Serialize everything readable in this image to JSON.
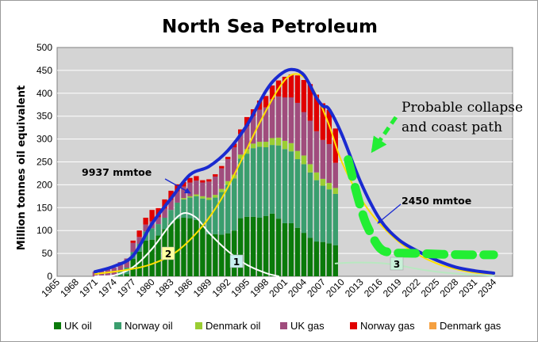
{
  "chart_data": {
    "type": "bar",
    "stacked": true,
    "title": "North Sea Petroleum",
    "ylabel": "Million tonnes oil equivalent",
    "xlabel": "",
    "ylim": [
      0,
      500
    ],
    "yticks": [
      "0",
      "50",
      "100",
      "150",
      "200",
      "250",
      "300",
      "350",
      "400",
      "450",
      "500"
    ],
    "xticks": [
      "1965",
      "1968",
      "1971",
      "1974",
      "1977",
      "1980",
      "1983",
      "1986",
      "1989",
      "1992",
      "1995",
      "1998",
      "2001",
      "2004",
      "2007",
      "2010",
      "2013",
      "2016",
      "2019",
      "2022",
      "2025",
      "2028",
      "2031",
      "2034"
    ],
    "grid": true,
    "legend_position": "bottom",
    "categories": [
      1971,
      1972,
      1973,
      1974,
      1975,
      1976,
      1977,
      1978,
      1979,
      1980,
      1981,
      1982,
      1983,
      1984,
      1985,
      1986,
      1987,
      1988,
      1989,
      1990,
      1991,
      1992,
      1993,
      1994,
      1995,
      1996,
      1997,
      1998,
      1999,
      2000,
      2001,
      2002,
      2003,
      2004,
      2005,
      2006,
      2007,
      2008,
      2009
    ],
    "series": [
      {
        "name": "UK oil",
        "color": "#0a7a0a",
        "values": [
          0,
          0,
          0,
          1,
          2,
          5,
          38,
          54,
          78,
          80,
          89,
          103,
          115,
          126,
          128,
          127,
          123,
          115,
          92,
          92,
          91,
          94,
          100,
          127,
          130,
          130,
          128,
          132,
          137,
          126,
          116,
          116,
          106,
          95,
          84,
          76,
          75,
          72,
          68
        ]
      },
      {
        "name": "Norway oil",
        "color": "#3a9e6e",
        "values": [
          0,
          0,
          2,
          2,
          9,
          14,
          15,
          17,
          20,
          25,
          25,
          25,
          30,
          35,
          40,
          45,
          52,
          55,
          75,
          80,
          93,
          106,
          114,
          130,
          138,
          150,
          155,
          150,
          150,
          160,
          162,
          157,
          150,
          150,
          143,
          134,
          123,
          118,
          112
        ]
      },
      {
        "name": "Denmark oil",
        "color": "#9acd32",
        "values": [
          0,
          0,
          0,
          0,
          0,
          0,
          0,
          0,
          0,
          0,
          0,
          0,
          0,
          0,
          3,
          3,
          4,
          5,
          5,
          6,
          7,
          8,
          8,
          9,
          10,
          10,
          11,
          12,
          15,
          17,
          18,
          18,
          18,
          19,
          18,
          17,
          15,
          14,
          13
        ]
      },
      {
        "name": "UK gas",
        "color": "#a04c7d",
        "values": [
          10,
          14,
          16,
          16,
          20,
          20,
          20,
          15,
          15,
          15,
          15,
          20,
          22,
          25,
          25,
          30,
          30,
          30,
          35,
          40,
          45,
          48,
          60,
          45,
          50,
          60,
          70,
          75,
          85,
          90,
          95,
          100,
          105,
          95,
          95,
          90,
          85,
          85,
          55
        ]
      },
      {
        "name": "Norway gas",
        "color": "#e00000",
        "values": [
          0,
          0,
          0,
          0,
          0,
          0,
          5,
          14,
          15,
          25,
          20,
          20,
          20,
          15,
          10,
          10,
          10,
          5,
          5,
          5,
          5,
          5,
          8,
          10,
          20,
          15,
          20,
          25,
          30,
          35,
          45,
          50,
          60,
          70,
          80,
          80,
          80,
          75,
          75
        ]
      },
      {
        "name": "Denmark gas",
        "color": "#f5a040",
        "values": [
          0,
          0,
          0,
          0,
          0,
          0,
          0,
          0,
          0,
          0,
          0,
          0,
          0,
          0,
          0,
          0,
          0,
          0,
          0,
          0,
          0,
          0,
          0,
          0,
          0,
          0,
          0,
          0,
          0,
          0,
          0,
          0,
          0,
          0,
          0,
          0,
          0,
          0,
          0
        ]
      }
    ],
    "curves": [
      {
        "label": "Total envelope",
        "color": "#1a2ad0",
        "x": [
          1971,
          1974,
          1977,
          1980,
          1983,
          1986,
          1989,
          1992,
          1995,
          1998,
          2000,
          2002,
          2004,
          2006,
          2007,
          2008,
          2010,
          2013,
          2016,
          2019,
          2022,
          2025,
          2028,
          2031,
          2034
        ],
        "y": [
          10,
          22,
          45,
          115,
          170,
          222,
          240,
          275,
          330,
          405,
          438,
          452,
          440,
          390,
          372,
          365,
          310,
          205,
          125,
          80,
          55,
          35,
          20,
          12,
          7
        ]
      },
      {
        "label": "1",
        "color": "#ffffff",
        "x": [
          1971,
          1974,
          1977,
          1980,
          1983,
          1985,
          1987,
          1989,
          1992,
          1995,
          1998,
          2000
        ],
        "y": [
          0,
          2,
          20,
          60,
          115,
          138,
          128,
          95,
          55,
          25,
          7,
          0
        ]
      },
      {
        "label": "2",
        "color": "#ffe000",
        "x": [
          1971,
          1976,
          1980,
          1984,
          1988,
          1991,
          1994,
          1997,
          2000,
          2002,
          2004,
          2006,
          2008,
          2010,
          2013,
          2016,
          2020,
          2025,
          2030,
          2034
        ],
        "y": [
          5,
          14,
          27,
          55,
          110,
          170,
          250,
          335,
          410,
          440,
          435,
          395,
          330,
          250,
          170,
          115,
          65,
          28,
          10,
          5
        ]
      },
      {
        "label": "3",
        "color": "#b8e8c0",
        "x": [
          2009,
          2012,
          2016,
          2019,
          2022,
          2025,
          2028,
          2031,
          2034
        ],
        "y": [
          28,
          30,
          29,
          24,
          16,
          10,
          6,
          3,
          1
        ]
      }
    ],
    "forecast_dashed": {
      "color": "#22ee33",
      "x": [
        2011,
        2012,
        2013,
        2014,
        2016,
        2018,
        2022,
        2026,
        2030,
        2034
      ],
      "y": [
        255,
        200,
        150,
        110,
        62,
        52,
        50,
        48,
        47,
        47
      ]
    },
    "annotations": [
      {
        "text": "9937 mmtoe"
      },
      {
        "text": "2450 mmtoe"
      },
      {
        "text": "Probable collapse"
      },
      {
        "text": "and coast path"
      },
      {
        "text": "1"
      },
      {
        "text": "2"
      },
      {
        "text": "3"
      }
    ]
  }
}
